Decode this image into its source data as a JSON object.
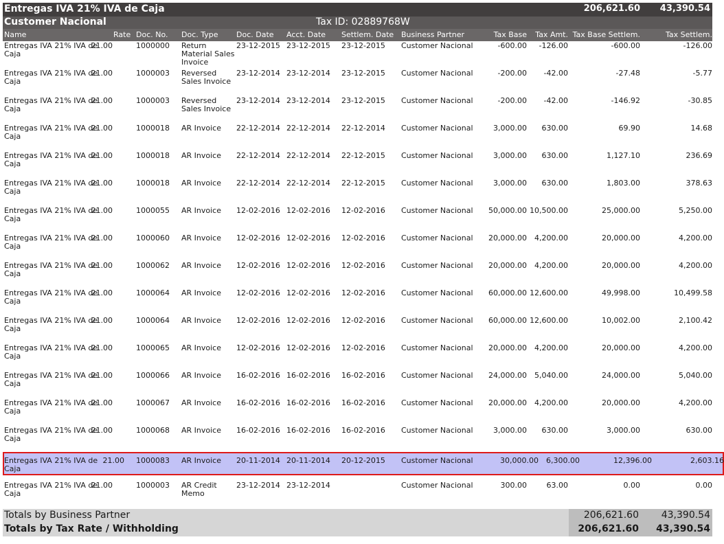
{
  "header": {
    "title": "Entregas IVA 21% IVA de Caja",
    "total_base": "206,621.60",
    "total_tax": "43,390.54",
    "partner": "Customer Nacional",
    "tax_id": "Tax ID: 02889768W"
  },
  "columns": {
    "name": "Name",
    "rate": "Rate",
    "doc_no": "Doc. No.",
    "doc_type": "Doc. Type",
    "doc_date": "Doc. Date",
    "acct_date": "Acct. Date",
    "settlem_date": "Settlem. Date",
    "partner": "Business Partner",
    "tax_base": "Tax Base",
    "tax_amt": "Tax Amt.",
    "base_settlem": "Tax Base Settlem.",
    "tax_settlem": "Tax Settlem."
  },
  "rows": [
    {
      "name": "Entregas IVA 21% IVA de Caja",
      "rate": "21.00",
      "doc": "1000000",
      "type": "Return Material Sales Invoice",
      "ddate": "23-12-2015",
      "adate": "23-12-2015",
      "sdate": "23-12-2015",
      "bp": "Customer Nacional",
      "base": "-600.00",
      "amt": "-126.00",
      "bset": "-600.00",
      "tset": "-126.00"
    },
    {
      "name": "Entregas IVA 21% IVA de Caja",
      "rate": "21.00",
      "doc": "1000003",
      "type": "Reversed Sales Invoice",
      "ddate": "23-12-2014",
      "adate": "23-12-2014",
      "sdate": "23-12-2015",
      "bp": "Customer Nacional",
      "base": "-200.00",
      "amt": "-42.00",
      "bset": "-27.48",
      "tset": "-5.77"
    },
    {
      "name": "Entregas IVA 21% IVA de Caja",
      "rate": "21.00",
      "doc": "1000003",
      "type": "Reversed Sales Invoice",
      "ddate": "23-12-2014",
      "adate": "23-12-2014",
      "sdate": "23-12-2015",
      "bp": "Customer Nacional",
      "base": "-200.00",
      "amt": "-42.00",
      "bset": "-146.92",
      "tset": "-30.85"
    },
    {
      "name": "Entregas IVA 21% IVA de Caja",
      "rate": "21.00",
      "doc": "1000018",
      "type": "AR Invoice",
      "ddate": "22-12-2014",
      "adate": "22-12-2014",
      "sdate": "22-12-2014",
      "bp": "Customer Nacional",
      "base": "3,000.00",
      "amt": "630.00",
      "bset": "69.90",
      "tset": "14.68"
    },
    {
      "name": "Entregas IVA 21% IVA de Caja",
      "rate": "21.00",
      "doc": "1000018",
      "type": "AR Invoice",
      "ddate": "22-12-2014",
      "adate": "22-12-2014",
      "sdate": "22-12-2015",
      "bp": "Customer Nacional",
      "base": "3,000.00",
      "amt": "630.00",
      "bset": "1,127.10",
      "tset": "236.69"
    },
    {
      "name": "Entregas IVA 21% IVA de Caja",
      "rate": "21.00",
      "doc": "1000018",
      "type": "AR Invoice",
      "ddate": "22-12-2014",
      "adate": "22-12-2014",
      "sdate": "22-12-2015",
      "bp": "Customer Nacional",
      "base": "3,000.00",
      "amt": "630.00",
      "bset": "1,803.00",
      "tset": "378.63"
    },
    {
      "name": "Entregas IVA 21% IVA de Caja",
      "rate": "21.00",
      "doc": "1000055",
      "type": "AR Invoice",
      "ddate": "12-02-2016",
      "adate": "12-02-2016",
      "sdate": "12-02-2016",
      "bp": "Customer Nacional",
      "base": "50,000.00",
      "amt": "10,500.00",
      "bset": "25,000.00",
      "tset": "5,250.00"
    },
    {
      "name": "Entregas IVA 21% IVA de Caja",
      "rate": "21.00",
      "doc": "1000060",
      "type": "AR Invoice",
      "ddate": "12-02-2016",
      "adate": "12-02-2016",
      "sdate": "12-02-2016",
      "bp": "Customer Nacional",
      "base": "20,000.00",
      "amt": "4,200.00",
      "bset": "20,000.00",
      "tset": "4,200.00"
    },
    {
      "name": "Entregas IVA 21% IVA de Caja",
      "rate": "21.00",
      "doc": "1000062",
      "type": "AR Invoice",
      "ddate": "12-02-2016",
      "adate": "12-02-2016",
      "sdate": "12-02-2016",
      "bp": "Customer Nacional",
      "base": "20,000.00",
      "amt": "4,200.00",
      "bset": "20,000.00",
      "tset": "4,200.00"
    },
    {
      "name": "Entregas IVA 21% IVA de Caja",
      "rate": "21.00",
      "doc": "1000064",
      "type": "AR Invoice",
      "ddate": "12-02-2016",
      "adate": "12-02-2016",
      "sdate": "12-02-2016",
      "bp": "Customer Nacional",
      "base": "60,000.00",
      "amt": "12,600.00",
      "bset": "49,998.00",
      "tset": "10,499.58"
    },
    {
      "name": "Entregas IVA 21% IVA de Caja",
      "rate": "21.00",
      "doc": "1000064",
      "type": "AR Invoice",
      "ddate": "12-02-2016",
      "adate": "12-02-2016",
      "sdate": "12-02-2016",
      "bp": "Customer Nacional",
      "base": "60,000.00",
      "amt": "12,600.00",
      "bset": "10,002.00",
      "tset": "2,100.42"
    },
    {
      "name": "Entregas IVA 21% IVA de Caja",
      "rate": "21.00",
      "doc": "1000065",
      "type": "AR Invoice",
      "ddate": "12-02-2016",
      "adate": "12-02-2016",
      "sdate": "12-02-2016",
      "bp": "Customer Nacional",
      "base": "20,000.00",
      "amt": "4,200.00",
      "bset": "20,000.00",
      "tset": "4,200.00"
    },
    {
      "name": "Entregas IVA 21% IVA de Caja",
      "rate": "21.00",
      "doc": "1000066",
      "type": "AR Invoice",
      "ddate": "16-02-2016",
      "adate": "16-02-2016",
      "sdate": "16-02-2016",
      "bp": "Customer Nacional",
      "base": "24,000.00",
      "amt": "5,040.00",
      "bset": "24,000.00",
      "tset": "5,040.00"
    },
    {
      "name": "Entregas IVA 21% IVA de Caja",
      "rate": "21.00",
      "doc": "1000067",
      "type": "AR Invoice",
      "ddate": "16-02-2016",
      "adate": "16-02-2016",
      "sdate": "16-02-2016",
      "bp": "Customer Nacional",
      "base": "20,000.00",
      "amt": "4,200.00",
      "bset": "20,000.00",
      "tset": "4,200.00"
    },
    {
      "name": "Entregas IVA 21% IVA de Caja",
      "rate": "21.00",
      "doc": "1000068",
      "type": "AR Invoice",
      "ddate": "16-02-2016",
      "adate": "16-02-2016",
      "sdate": "16-02-2016",
      "bp": "Customer Nacional",
      "base": "3,000.00",
      "amt": "630.00",
      "bset": "3,000.00",
      "tset": "630.00"
    },
    {
      "name": "Entregas IVA 21% IVA de Caja",
      "rate": "21.00",
      "doc": "1000083",
      "type": "AR Invoice",
      "ddate": "20-11-2014",
      "adate": "20-11-2014",
      "sdate": "20-12-2015",
      "bp": "Customer Nacional",
      "base": "30,000.00",
      "amt": "6,300.00",
      "bset": "12,396.00",
      "tset": "2,603.16",
      "selected": true
    },
    {
      "name": "Entregas IVA 21% IVA de Caja",
      "rate": "21.00",
      "doc": "1000003",
      "type": "AR Credit Memo",
      "ddate": "23-12-2014",
      "adate": "23-12-2014",
      "sdate": "",
      "bp": "Customer Nacional",
      "base": "300.00",
      "amt": "63.00",
      "bset": "0.00",
      "tset": "0.00"
    }
  ],
  "totals": {
    "by_partner_label": "Totals by Business Partner",
    "by_partner_base": "206,621.60",
    "by_partner_tax": "43,390.54",
    "by_rate_label": "Totals by Tax Rate / Withholding",
    "by_rate_base": "206,621.60",
    "by_rate_tax": "43,390.54"
  }
}
